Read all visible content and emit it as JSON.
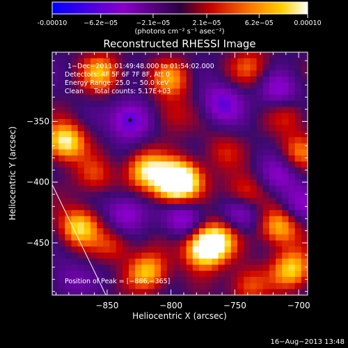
{
  "colorbar": {
    "tick_labels": [
      "-0.00010",
      "−6.2e−05",
      "−2.1e−05",
      "2.1e−05",
      "6.2e−05",
      "0.00010"
    ],
    "tick_values": [
      -0.0001,
      -6.2e-05,
      -2.1e-05,
      2.1e-05,
      6.2e-05,
      0.0001
    ],
    "unit_label": "(photons cm⁻² s⁻¹ asec⁻²)",
    "range": [
      -0.0001,
      0.0001
    ]
  },
  "chart_data": {
    "type": "heatmap",
    "title": "Reconstructed RHESSI Image",
    "xlabel": "Heliocentric X (arcsec)",
    "ylabel": "Heliocentric Y (arcsec)",
    "xlim": [
      -893,
      -693
    ],
    "ylim": [
      -493,
      -293
    ],
    "x_ticks": [
      -850,
      -800,
      -750,
      -700
    ],
    "y_ticks": [
      -350,
      -400,
      -450
    ],
    "x_tick_labels": [
      "−850",
      "−800",
      "−750",
      "−700"
    ],
    "y_tick_labels": [
      "−350",
      "−400",
      "−450"
    ],
    "annotations": [
      "1−Dec−2011 01:49:48.000 to 01:54:02.000",
      "Detectors: 4F 5F 6F 7F 8F, Att 0",
      "Energy Range: 25.0 − 50.0 keV",
      "Clean     Total counts: 5.17E+03"
    ],
    "peak_label": "Position of Peak = [−886,−365]",
    "peak_position": [
      -886,
      -365
    ],
    "marker_position": [
      -832,
      -349
    ],
    "limb_line": [
      [
        -893,
        -402
      ],
      [
        -851,
        -493
      ]
    ],
    "colormap": "blue-purple-red-orange-yellow-white",
    "hotspots": [
      {
        "x": -883,
        "y": -367,
        "v": 1.0
      },
      {
        "x": -800,
        "y": -401,
        "v": 1.0
      },
      {
        "x": -790,
        "y": -398,
        "v": 0.9
      },
      {
        "x": -820,
        "y": -390,
        "v": 0.85
      },
      {
        "x": -775,
        "y": -456,
        "v": 0.95
      },
      {
        "x": -765,
        "y": -448,
        "v": 0.9
      },
      {
        "x": -845,
        "y": -456,
        "v": 0.85
      },
      {
        "x": -872,
        "y": -437,
        "v": 0.85
      },
      {
        "x": -818,
        "y": -474,
        "v": 0.8
      },
      {
        "x": -715,
        "y": -437,
        "v": 0.8
      },
      {
        "x": -705,
        "y": -472,
        "v": 0.85
      },
      {
        "x": -855,
        "y": -310,
        "v": 0.7
      },
      {
        "x": -800,
        "y": -315,
        "v": 0.6
      },
      {
        "x": -743,
        "y": -410,
        "v": 0.55
      },
      {
        "x": -700,
        "y": -375,
        "v": 0.5
      },
      {
        "x": -738,
        "y": -305,
        "v": 0.45
      },
      {
        "x": -800,
        "y": -345,
        "v": 0.35
      },
      {
        "x": -760,
        "y": -375,
        "v": 0.3
      },
      {
        "x": -708,
        "y": -345,
        "v": 0.35
      },
      {
        "x": -860,
        "y": -395,
        "v": 0.4
      },
      {
        "x": -740,
        "y": -485,
        "v": 0.5
      },
      {
        "x": -832,
        "y": -349,
        "v": -0.75
      },
      {
        "x": -760,
        "y": -335,
        "v": -0.6
      },
      {
        "x": -715,
        "y": -325,
        "v": -0.5
      },
      {
        "x": -835,
        "y": -425,
        "v": -0.55
      },
      {
        "x": -790,
        "y": -430,
        "v": -0.55
      },
      {
        "x": -745,
        "y": -425,
        "v": -0.5
      },
      {
        "x": -845,
        "y": -460,
        "v": -0.5
      },
      {
        "x": -715,
        "y": -395,
        "v": -0.45
      },
      {
        "x": -700,
        "y": -420,
        "v": -0.4
      },
      {
        "x": -880,
        "y": -480,
        "v": -0.3
      }
    ]
  },
  "footer": {
    "timestamp": "16−Aug−2013 13:48"
  }
}
